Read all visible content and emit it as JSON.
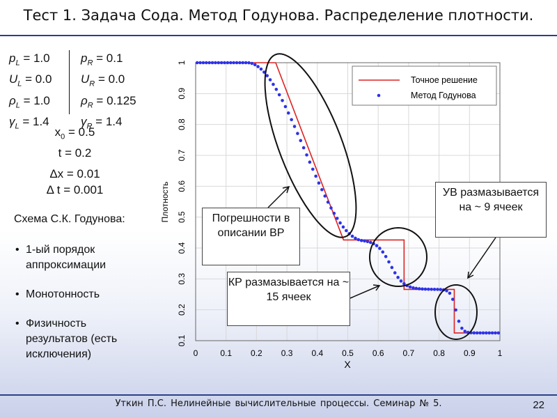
{
  "slide": {
    "title": "Тест 1. Задача Сода. Метод Годунова. Распределение плотности.",
    "footer": "Уткин П.С. Нелинейные вычислительные процессы. Семинар № 5.",
    "page_number": "22"
  },
  "params": {
    "left": [
      {
        "sym": "p",
        "sub": "L",
        "val": " = 1.0"
      },
      {
        "sym": "U",
        "sub": "L",
        "val": " = 0.0"
      },
      {
        "sym": "ρ",
        "sub": "L",
        "val": " = 1.0"
      },
      {
        "sym": "γ",
        "sub": "L",
        "val": " = 1.4"
      }
    ],
    "right": [
      {
        "sym": "p",
        "sub": "R",
        "val": " = 0.1"
      },
      {
        "sym": "U",
        "sub": "R",
        "val": " = 0.0"
      },
      {
        "sym": "ρ",
        "sub": "R",
        "val": " = 0.125"
      },
      {
        "sym": "γ",
        "sub": "R",
        "val": " = 1.4"
      }
    ],
    "x0_label": "x",
    "x0_sub": "0",
    "x0_val": " = 0.5",
    "t": "t = 0.2",
    "dx": "Δx = 0.01",
    "dt": "Δ t = 0.001"
  },
  "scheme": {
    "title": "Схема С.К. Годунова:",
    "bullets": [
      "1-ый порядок аппроксимации",
      "Монотонность",
      "Физичность результатов (есть исключения)"
    ]
  },
  "callouts": {
    "rw": "Погрешности в описании ВР",
    "cd": "КР размазывается на ~ 15 ячеек",
    "sw": "УВ размазывается на ~ 9 ячеек"
  },
  "colors": {
    "exact": "#dd2222",
    "numeric": "#2d32e8",
    "rule": "#2b3f87"
  },
  "chart_data": {
    "type": "line",
    "xlabel": "X",
    "ylabel": "Плотность",
    "xlim": [
      0,
      1
    ],
    "ylim": [
      0.1,
      1
    ],
    "xticks": [
      "0",
      "0.1",
      "0.2",
      "0.3",
      "0.4",
      "0.5",
      "0.6",
      "0.7",
      "0.8",
      "0.9",
      "1"
    ],
    "yticks": [
      "0.1",
      "0.2",
      "0.3",
      "0.4",
      "0.5",
      "0.6",
      "0.7",
      "0.8",
      "0.9",
      "1"
    ],
    "grid": true,
    "legend_position": "top-right",
    "series": [
      {
        "name": "Точное решение",
        "style": "line",
        "x": [
          0,
          0.263,
          0.486,
          0.486,
          0.685,
          0.685,
          0.85,
          0.85,
          1.0
        ],
        "y": [
          1.0,
          1.0,
          0.426,
          0.426,
          0.426,
          0.266,
          0.266,
          0.125,
          0.125
        ]
      },
      {
        "name": "Метод Годунова",
        "style": "markers",
        "x_start": 0.005,
        "dx": 0.01,
        "count": 100,
        "model": "smoothed Sod profile: rarefaction 0.17–0.55, contact centre 0.64 width ~15 cells, shock centre 0.855 width ~9 cells"
      }
    ]
  }
}
